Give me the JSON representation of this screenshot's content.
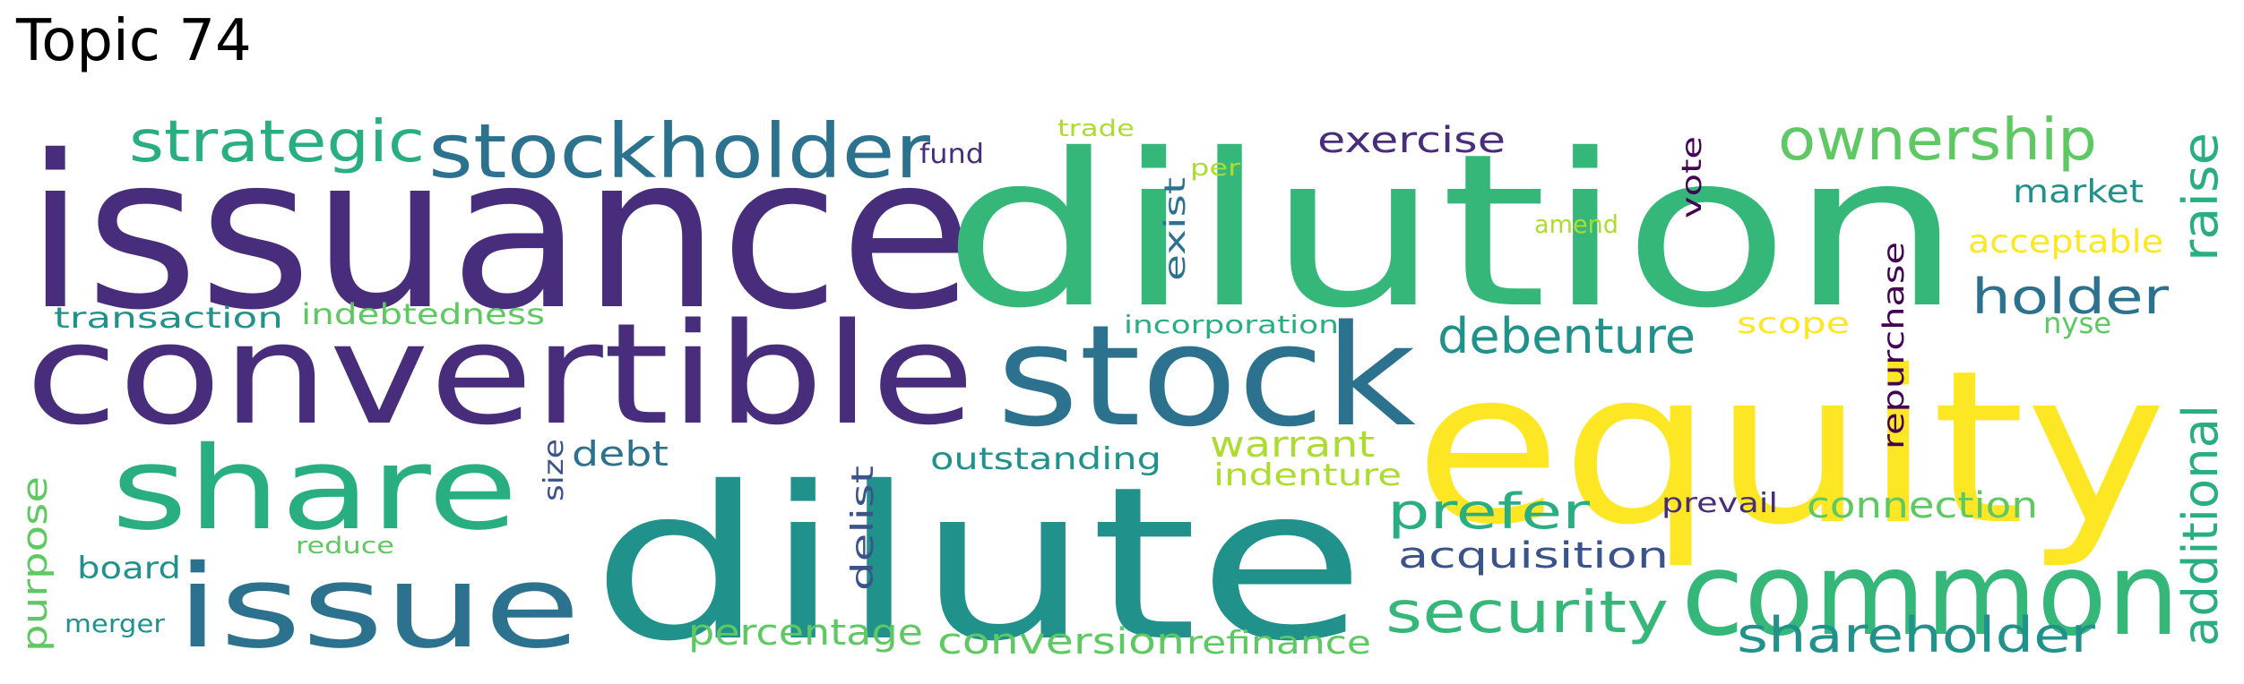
{
  "title": "Topic 74",
  "palette": {
    "p1": "#472d7b",
    "p2": "#3b528b",
    "p3": "#2c728e",
    "p4": "#21918c",
    "p5": "#28ae80",
    "p6": "#35b779",
    "p7": "#5ec962",
    "p8": "#addc30",
    "p9": "#fde725",
    "p10": "#440154"
  },
  "words": [
    {
      "text": "issuance",
      "color": "p1"
    },
    {
      "text": "dilution",
      "color": "p6"
    },
    {
      "text": "equity",
      "color": "p9"
    },
    {
      "text": "dilute",
      "color": "p4"
    },
    {
      "text": "convertible",
      "color": "p1"
    },
    {
      "text": "stock",
      "color": "p3"
    },
    {
      "text": "share",
      "color": "p5"
    },
    {
      "text": "common",
      "color": "p6"
    },
    {
      "text": "issue",
      "color": "p3"
    },
    {
      "text": "stockholder",
      "color": "p3"
    },
    {
      "text": "strategic",
      "color": "p5"
    },
    {
      "text": "ownership",
      "color": "p7"
    },
    {
      "text": "security",
      "color": "p6"
    },
    {
      "text": "shareholder",
      "color": "p4"
    },
    {
      "text": "debenture",
      "color": "p4"
    },
    {
      "text": "additional",
      "color": "p5"
    },
    {
      "text": "raise",
      "color": "p5"
    },
    {
      "text": "holder",
      "color": "p3"
    },
    {
      "text": "prefer",
      "color": "p5"
    },
    {
      "text": "acquisition",
      "color": "p2"
    },
    {
      "text": "exercise",
      "color": "p1"
    },
    {
      "text": "connection",
      "color": "p7"
    },
    {
      "text": "warrant",
      "color": "p8"
    },
    {
      "text": "percentage",
      "color": "p7"
    },
    {
      "text": "conversion",
      "color": "p7"
    },
    {
      "text": "refinance",
      "color": "p7"
    },
    {
      "text": "indenture",
      "color": "p8"
    },
    {
      "text": "outstanding",
      "color": "p4"
    },
    {
      "text": "transaction",
      "color": "p4"
    },
    {
      "text": "indebtedness",
      "color": "p7"
    },
    {
      "text": "debt",
      "color": "p3"
    },
    {
      "text": "purpose",
      "color": "p7"
    },
    {
      "text": "board",
      "color": "p4"
    },
    {
      "text": "merger",
      "color": "p4"
    },
    {
      "text": "reduce",
      "color": "p7"
    },
    {
      "text": "size",
      "color": "p2"
    },
    {
      "text": "delist",
      "color": "p2"
    },
    {
      "text": "fund",
      "color": "p1"
    },
    {
      "text": "trade",
      "color": "p8"
    },
    {
      "text": "per",
      "color": "p8"
    },
    {
      "text": "exist",
      "color": "p3"
    },
    {
      "text": "amend",
      "color": "p8"
    },
    {
      "text": "incorporation",
      "color": "p5"
    },
    {
      "text": "vote",
      "color": "p10"
    },
    {
      "text": "repurchase",
      "color": "p10"
    },
    {
      "text": "market",
      "color": "p4"
    },
    {
      "text": "acceptable",
      "color": "p9"
    },
    {
      "text": "nyse",
      "color": "p7"
    },
    {
      "text": "scope",
      "color": "p9"
    },
    {
      "text": "prevail",
      "color": "p1"
    }
  ]
}
